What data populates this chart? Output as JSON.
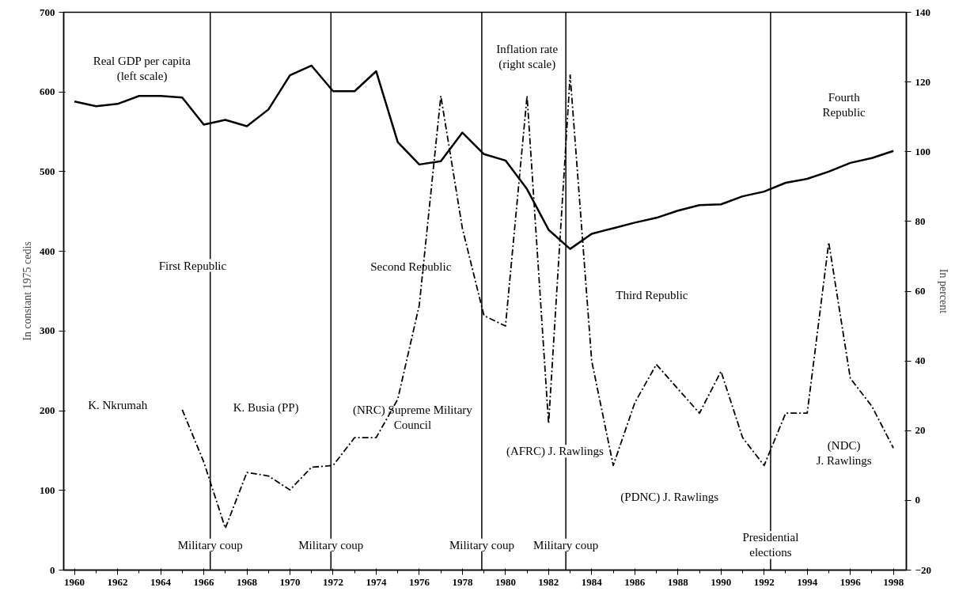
{
  "chart_data": {
    "type": "line",
    "ylabel": "In constant 1975 cedis",
    "y2label": "In percent",
    "xlim": [
      1959.5,
      1998.6
    ],
    "xticks": [
      1960,
      1962,
      1964,
      1966,
      1968,
      1970,
      1972,
      1974,
      1976,
      1978,
      1980,
      1982,
      1984,
      1986,
      1988,
      1990,
      1992,
      1994,
      1996,
      1998
    ],
    "ylim": [
      0,
      700
    ],
    "yticks": [
      0,
      100,
      200,
      300,
      400,
      500,
      600,
      700
    ],
    "y2lim": [
      -20,
      140
    ],
    "y2ticks": [
      -20,
      0,
      20,
      40,
      60,
      80,
      100,
      120,
      140
    ],
    "grid": false,
    "series": [
      {
        "color": "#000000",
        "line_style": "solid",
        "x": [
          1960,
          1961,
          1962,
          1963,
          1964,
          1965,
          1966,
          1967,
          1968,
          1969,
          1970,
          1971,
          1972,
          1973,
          1974,
          1975,
          1976,
          1977,
          1978,
          1979,
          1980,
          1981,
          1982,
          1983,
          1984,
          1985,
          1986,
          1987,
          1988,
          1989,
          1990,
          1991,
          1992,
          1993,
          1994,
          1995,
          1996,
          1997,
          1998
        ],
        "values": [
          588,
          582,
          585,
          595,
          595,
          593,
          559,
          565,
          557,
          578,
          621,
          633,
          601,
          601,
          626,
          537,
          509,
          513,
          549,
          522,
          514,
          478,
          427,
          403,
          422,
          429,
          436,
          442,
          451,
          458,
          459,
          469,
          475,
          486,
          491,
          500,
          511,
          517,
          526
        ]
      },
      {
        "color": "#000000",
        "line_style": "dashed",
        "axis": "y2",
        "x": [
          1965,
          1966,
          1967,
          1968,
          1969,
          1970,
          1971,
          1972,
          1973,
          1974,
          1975,
          1976,
          1977,
          1978,
          1979,
          1980,
          1981,
          1982,
          1983,
          1984,
          1985,
          1986,
          1987,
          1988,
          1989,
          1990,
          1991,
          1992,
          1993,
          1994,
          1995,
          1996,
          1997,
          1998
        ],
        "values": [
          26,
          11,
          -8,
          8,
          7,
          3,
          9.5,
          10,
          18,
          18,
          29,
          56,
          116,
          78,
          53,
          50,
          116,
          22,
          122,
          40,
          10,
          28,
          39,
          32,
          25,
          37,
          18,
          10,
          25,
          25,
          74,
          35,
          27,
          15
        ]
      }
    ],
    "ref_lines": [
      {
        "axis": "x",
        "value": 1966.3,
        "label": "Military coup"
      },
      {
        "axis": "x",
        "value": 1971.9,
        "label": "Military coup"
      },
      {
        "axis": "x",
        "value": 1978.9,
        "label": "Military coup"
      },
      {
        "axis": "x",
        "value": 1982.8,
        "label": "Military coup"
      },
      {
        "axis": "x",
        "value": 1992.3,
        "label": "Presidential\nelections"
      }
    ],
    "annotations": [
      "Real GDP per capita\n(left scale)",
      "Inflation rate\n(right scale)",
      "First Republic",
      "Second Republic",
      "Third Republic",
      "Fourth\nRepublic",
      "K. Nkrumah",
      "K. Busia (PP)",
      "(NRC) Supreme Military\nCouncil",
      "(AFRC) J. Rawlings",
      "(PDNC) J. Rawlings",
      "(NDC)\nJ. Rawlings"
    ]
  }
}
